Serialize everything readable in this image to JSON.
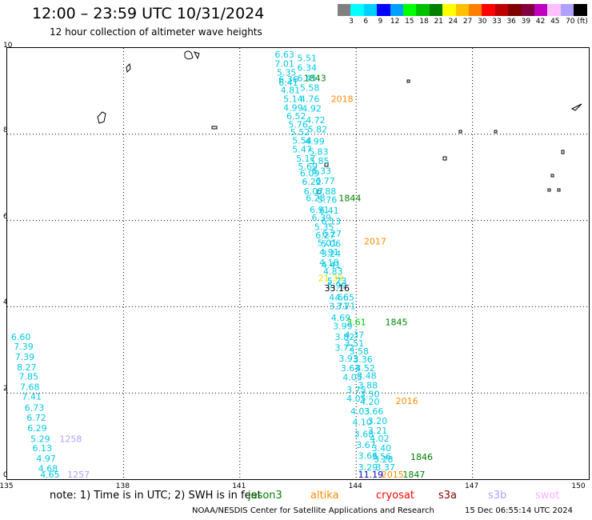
{
  "header": {
    "title": "12:00 – 23:59 UTC 10/31/2024",
    "subtitle": "12 hour collection of altimeter wave heights"
  },
  "colorbar": {
    "colors": [
      "#808080",
      "#00ffff",
      "#00d0ff",
      "#0000ff",
      "#00a0ff",
      "#00ff00",
      "#00c000",
      "#008000",
      "#ffff00",
      "#ffc000",
      "#ff8000",
      "#ff0000",
      "#c00000",
      "#800000",
      "#800040",
      "#c000c0",
      "#ffc0ff",
      "#b0a0ff",
      "#000000"
    ],
    "labels": [
      "3",
      "6",
      "9",
      "12",
      "15",
      "18",
      "21",
      "24",
      "27",
      "30",
      "33",
      "36",
      "39",
      "42",
      "45",
      "70 (ft)"
    ]
  },
  "axes": {
    "x_ticks": [
      "135",
      "138",
      "141",
      "144",
      "147",
      "150"
    ],
    "y_ticks": [
      "10",
      "8",
      "6",
      "4",
      "2",
      "0"
    ]
  },
  "map_labels": [
    {
      "t": "6.63",
      "lon": 141.9,
      "lat": 9.85,
      "c": "#00c8e6"
    },
    {
      "t": "5.51",
      "lon": 142.48,
      "lat": 9.77,
      "c": "#00c8e6"
    },
    {
      "t": "7.01",
      "lon": 141.9,
      "lat": 9.64,
      "c": "#00c8e6"
    },
    {
      "t": "6.34",
      "lon": 142.48,
      "lat": 9.55,
      "c": "#00c8e6"
    },
    {
      "t": "5.35",
      "lon": 141.95,
      "lat": 9.43,
      "c": "#00c8e6"
    },
    {
      "t": "1843",
      "lon": 142.65,
      "lat": 9.3,
      "c": "#008000"
    },
    {
      "t": "6.36",
      "lon": 142.0,
      "lat": 9.28,
      "c": "#00c8e6"
    },
    {
      "t": "6.45",
      "lon": 142.48,
      "lat": 9.3,
      "c": "#00c8e6"
    },
    {
      "t": "6.41",
      "lon": 142.0,
      "lat": 9.2,
      "c": "#00c8e6"
    },
    {
      "t": "5.58",
      "lon": 142.55,
      "lat": 9.08,
      "c": "#00c8e6"
    },
    {
      "t": "4.81",
      "lon": 142.05,
      "lat": 9.03,
      "c": "#00c8e6"
    },
    {
      "t": "5.14",
      "lon": 142.12,
      "lat": 8.82,
      "c": "#00c8e6"
    },
    {
      "t": "4.76",
      "lon": 142.55,
      "lat": 8.82,
      "c": "#00c8e6"
    },
    {
      "t": "2018",
      "lon": 143.35,
      "lat": 8.82,
      "c": "#ff8c00"
    },
    {
      "t": "4.99",
      "lon": 142.12,
      "lat": 8.62,
      "c": "#00c8e6"
    },
    {
      "t": "4.92",
      "lon": 142.6,
      "lat": 8.6,
      "c": "#00c8e6"
    },
    {
      "t": "6.52",
      "lon": 142.2,
      "lat": 8.42,
      "c": "#00c8e6"
    },
    {
      "t": "4.72",
      "lon": 142.7,
      "lat": 8.33,
      "c": "#00c8e6"
    },
    {
      "t": "5.76",
      "lon": 142.25,
      "lat": 8.23,
      "c": "#00c8e6"
    },
    {
      "t": "5.82",
      "lon": 142.75,
      "lat": 8.12,
      "c": "#00c8e6"
    },
    {
      "t": "5.52",
      "lon": 142.3,
      "lat": 8.05,
      "c": "#00c8e6"
    },
    {
      "t": "5.54",
      "lon": 142.35,
      "lat": 7.86,
      "c": "#00c8e6"
    },
    {
      "t": "4.99",
      "lon": 142.68,
      "lat": 7.84,
      "c": "#00c8e6"
    },
    {
      "t": "5.47",
      "lon": 142.35,
      "lat": 7.65,
      "c": "#00c8e6"
    },
    {
      "t": "5.83",
      "lon": 142.78,
      "lat": 7.6,
      "c": "#00c8e6"
    },
    {
      "t": "5.17",
      "lon": 142.45,
      "lat": 7.44,
      "c": "#00c8e6"
    },
    {
      "t": "5.85",
      "lon": 142.8,
      "lat": 7.38,
      "c": "#00c8e6"
    },
    {
      "t": "5.69",
      "lon": 142.5,
      "lat": 7.25,
      "c": "#00c8e6"
    },
    {
      "t": "6.33",
      "lon": 142.85,
      "lat": 7.15,
      "c": "#00c8e6"
    },
    {
      "t": "6.09",
      "lon": 142.55,
      "lat": 7.1,
      "c": "#00c8e6"
    },
    {
      "t": "6.22",
      "lon": 142.6,
      "lat": 6.9,
      "c": "#00c8e6"
    },
    {
      "t": "6.77",
      "lon": 142.95,
      "lat": 6.92,
      "c": "#00c8e6"
    },
    {
      "t": "6.07",
      "lon": 142.65,
      "lat": 6.68,
      "c": "#00c8e6"
    },
    {
      "t": "6.88",
      "lon": 142.98,
      "lat": 6.68,
      "c": "#00c8e6"
    },
    {
      "t": "1844",
      "lon": 143.55,
      "lat": 6.52,
      "c": "#008000"
    },
    {
      "t": "6.28",
      "lon": 142.7,
      "lat": 6.52,
      "c": "#00c8e6"
    },
    {
      "t": "5.76",
      "lon": 143.0,
      "lat": 6.48,
      "c": "#00c8e6"
    },
    {
      "t": "6.91",
      "lon": 142.8,
      "lat": 6.25,
      "c": "#00c8e6"
    },
    {
      "t": "6.41",
      "lon": 143.05,
      "lat": 6.23,
      "c": "#00c8e6"
    },
    {
      "t": "6.39",
      "lon": 142.85,
      "lat": 6.07,
      "c": "#00c8e6"
    },
    {
      "t": "6.13",
      "lon": 143.1,
      "lat": 5.98,
      "c": "#00c8e6"
    },
    {
      "t": "5.35",
      "lon": 142.92,
      "lat": 5.85,
      "c": "#00c8e6"
    },
    {
      "t": "6.27",
      "lon": 143.12,
      "lat": 5.7,
      "c": "#00c8e6"
    },
    {
      "t": "6.27",
      "lon": 142.95,
      "lat": 5.66,
      "c": "#00c8e6"
    },
    {
      "t": "2017",
      "lon": 144.2,
      "lat": 5.52,
      "c": "#ff8c00"
    },
    {
      "t": "5.01",
      "lon": 143.0,
      "lat": 5.48,
      "c": "#00c8e6"
    },
    {
      "t": "5.06",
      "lon": 143.1,
      "lat": 5.46,
      "c": "#00c8e6"
    },
    {
      "t": "4.91",
      "lon": 143.05,
      "lat": 5.27,
      "c": "#00c8e6"
    },
    {
      "t": "3.24",
      "lon": 143.1,
      "lat": 5.23,
      "c": "#00c8e6"
    },
    {
      "t": "4.18",
      "lon": 143.05,
      "lat": 5.03,
      "c": "#00c8e6"
    },
    {
      "t": "4.41",
      "lon": 143.1,
      "lat": 4.97,
      "c": "#00c8e6"
    },
    {
      "t": "4.83",
      "lon": 143.15,
      "lat": 4.82,
      "c": "#00c8e6"
    },
    {
      "t": "21.39",
      "lon": 143.02,
      "lat": 4.67,
      "c": "#e6e600"
    },
    {
      "t": "5.73",
      "lon": 143.25,
      "lat": 4.6,
      "c": "#00c8e6"
    },
    {
      "t": "5.99",
      "lon": 143.25,
      "lat": 4.5,
      "c": "#00c8e6"
    },
    {
      "t": "33.16",
      "lon": 143.18,
      "lat": 4.43,
      "c": "#000000"
    },
    {
      "t": "4.66",
      "lon": 143.3,
      "lat": 4.22,
      "c": "#00c8e6"
    },
    {
      "t": "4.65",
      "lon": 143.45,
      "lat": 4.22,
      "c": "#00c8e6"
    },
    {
      "t": "3.71",
      "lon": 143.3,
      "lat": 4.02,
      "c": "#00c8e6"
    },
    {
      "t": "3.71",
      "lon": 143.48,
      "lat": 4.02,
      "c": "#00c8e6"
    },
    {
      "t": "4.69",
      "lon": 143.35,
      "lat": 3.75,
      "c": "#00c8e6"
    },
    {
      "t": "3.61",
      "lon": 143.75,
      "lat": 3.65,
      "c": "#00c800"
    },
    {
      "t": "1845",
      "lon": 144.75,
      "lat": 3.65,
      "c": "#008000"
    },
    {
      "t": "3.99",
      "lon": 143.4,
      "lat": 3.55,
      "c": "#00c8e6"
    },
    {
      "t": "4.37",
      "lon": 143.7,
      "lat": 3.35,
      "c": "#00c8e6"
    },
    {
      "t": "3.82",
      "lon": 143.45,
      "lat": 3.3,
      "c": "#00c8e6"
    },
    {
      "t": "3.51",
      "lon": 143.7,
      "lat": 3.15,
      "c": "#00c8e6"
    },
    {
      "t": "3.72",
      "lon": 143.45,
      "lat": 3.05,
      "c": "#00c8e6"
    },
    {
      "t": "3.58",
      "lon": 143.82,
      "lat": 2.97,
      "c": "#00c8e6"
    },
    {
      "t": "3.93",
      "lon": 143.55,
      "lat": 2.8,
      "c": "#00c8e6"
    },
    {
      "t": "3.36",
      "lon": 143.92,
      "lat": 2.78,
      "c": "#00c8e6"
    },
    {
      "t": "3.64",
      "lon": 143.6,
      "lat": 2.58,
      "c": "#00c8e6"
    },
    {
      "t": "3.52",
      "lon": 143.98,
      "lat": 2.58,
      "c": "#00c8e6"
    },
    {
      "t": "4.05",
      "lon": 143.65,
      "lat": 2.37,
      "c": "#00c8e6"
    },
    {
      "t": "3.48",
      "lon": 144.02,
      "lat": 2.4,
      "c": "#00c8e6"
    },
    {
      "t": "3.88",
      "lon": 144.05,
      "lat": 2.18,
      "c": "#00c8e6"
    },
    {
      "t": "3.75",
      "lon": 143.75,
      "lat": 2.08,
      "c": "#00c8e6"
    },
    {
      "t": "3.50",
      "lon": 144.1,
      "lat": 1.98,
      "c": "#00c8e6"
    },
    {
      "t": "2016",
      "lon": 145.02,
      "lat": 1.82,
      "c": "#ff8c00"
    },
    {
      "t": "4.05",
      "lon": 143.75,
      "lat": 1.87,
      "c": "#00c8e6"
    },
    {
      "t": "4.20",
      "lon": 144.1,
      "lat": 1.8,
      "c": "#00c8e6"
    },
    {
      "t": "4.03",
      "lon": 143.85,
      "lat": 1.58,
      "c": "#00c8e6"
    },
    {
      "t": "3.66",
      "lon": 144.2,
      "lat": 1.58,
      "c": "#00c8e6"
    },
    {
      "t": "4.10",
      "lon": 143.9,
      "lat": 1.33,
      "c": "#00c8e6"
    },
    {
      "t": "3.20",
      "lon": 144.3,
      "lat": 1.35,
      "c": "#00c8e6"
    },
    {
      "t": "3.21",
      "lon": 144.3,
      "lat": 1.13,
      "c": "#00c8e6"
    },
    {
      "t": "3.68",
      "lon": 143.95,
      "lat": 1.05,
      "c": "#00c8e6"
    },
    {
      "t": "4.02",
      "lon": 144.35,
      "lat": 0.95,
      "c": "#00c8e6"
    },
    {
      "t": "3.67",
      "lon": 144.0,
      "lat": 0.8,
      "c": "#00c8e6"
    },
    {
      "t": "3.40",
      "lon": 144.4,
      "lat": 0.72,
      "c": "#00c8e6"
    },
    {
      "t": "1846",
      "lon": 145.4,
      "lat": 0.52,
      "c": "#008000"
    },
    {
      "t": "3.66",
      "lon": 144.05,
      "lat": 0.55,
      "c": "#00c8e6"
    },
    {
      "t": "3.56",
      "lon": 144.4,
      "lat": 0.53,
      "c": "#00c8e6"
    },
    {
      "t": "3.28",
      "lon": 144.45,
      "lat": 0.46,
      "c": "#00c8e6"
    },
    {
      "t": "3.29",
      "lon": 144.05,
      "lat": 0.28,
      "c": "#00c8e6"
    },
    {
      "t": "3.37",
      "lon": 144.5,
      "lat": 0.28,
      "c": "#00c8e6"
    },
    {
      "t": "11.19",
      "lon": 144.05,
      "lat": 0.02,
      "c": "#0000c0"
    },
    {
      "t": "2015",
      "lon": 144.65,
      "lat": 0.02,
      "c": "#ff8c00"
    },
    {
      "t": "1847",
      "lon": 145.2,
      "lat": 0.05,
      "c": "#008000"
    },
    {
      "t": "6.60",
      "lon": 135.1,
      "lat": 3.3,
      "c": "#00c8e6"
    },
    {
      "t": "7.39",
      "lon": 135.17,
      "lat": 3.08,
      "c": "#00c8e6"
    },
    {
      "t": "7.39",
      "lon": 135.2,
      "lat": 2.84,
      "c": "#00c8e6"
    },
    {
      "t": "8.27",
      "lon": 135.25,
      "lat": 2.6,
      "c": "#00c8e6"
    },
    {
      "t": "7.85",
      "lon": 135.3,
      "lat": 2.38,
      "c": "#00c8e6"
    },
    {
      "t": "7.68",
      "lon": 135.33,
      "lat": 2.14,
      "c": "#00c8e6"
    },
    {
      "t": "7.41",
      "lon": 135.38,
      "lat": 1.92,
      "c": "#00c8e6"
    },
    {
      "t": "6.73",
      "lon": 135.45,
      "lat": 1.66,
      "c": "#00c8e6"
    },
    {
      "t": "6.72",
      "lon": 135.5,
      "lat": 1.43,
      "c": "#00c8e6"
    },
    {
      "t": "6.29",
      "lon": 135.52,
      "lat": 1.19,
      "c": "#00c8e6"
    },
    {
      "t": "5.29",
      "lon": 135.6,
      "lat": 0.94,
      "c": "#00c8e6"
    },
    {
      "t": "1258",
      "lon": 136.35,
      "lat": 0.94,
      "c": "#b0a0ff"
    },
    {
      "t": "6.13",
      "lon": 135.65,
      "lat": 0.72,
      "c": "#00c8e6"
    },
    {
      "t": "4.97",
      "lon": 135.75,
      "lat": 0.48,
      "c": "#00c8e6"
    },
    {
      "t": "4.68",
      "lon": 135.8,
      "lat": 0.25,
      "c": "#00c8e6"
    },
    {
      "t": "4.65",
      "lon": 135.85,
      "lat": 0.0,
      "c": "#00c8e6"
    },
    {
      "t": "1257",
      "lon": 136.55,
      "lat": 0.0,
      "c": "#b0a0ff"
    }
  ],
  "legend": {
    "note": "note: 1) Time is in UTC; 2) SWH is in feet",
    "items": [
      {
        "name": "jason3",
        "color": "#008000"
      },
      {
        "name": "altika",
        "color": "#ff8c00"
      },
      {
        "name": "cryosat",
        "color": "#ff0000"
      },
      {
        "name": "s3a",
        "color": "#800000"
      },
      {
        "name": "s3b",
        "color": "#b0a0ff"
      },
      {
        "name": "swot",
        "color": "#ffb0ff"
      }
    ]
  },
  "footer": {
    "source": "NOAA/NESDIS Center for Satellite Applications and Research",
    "timestamp": "15 Dec 06:55:14 UTC 2024"
  }
}
